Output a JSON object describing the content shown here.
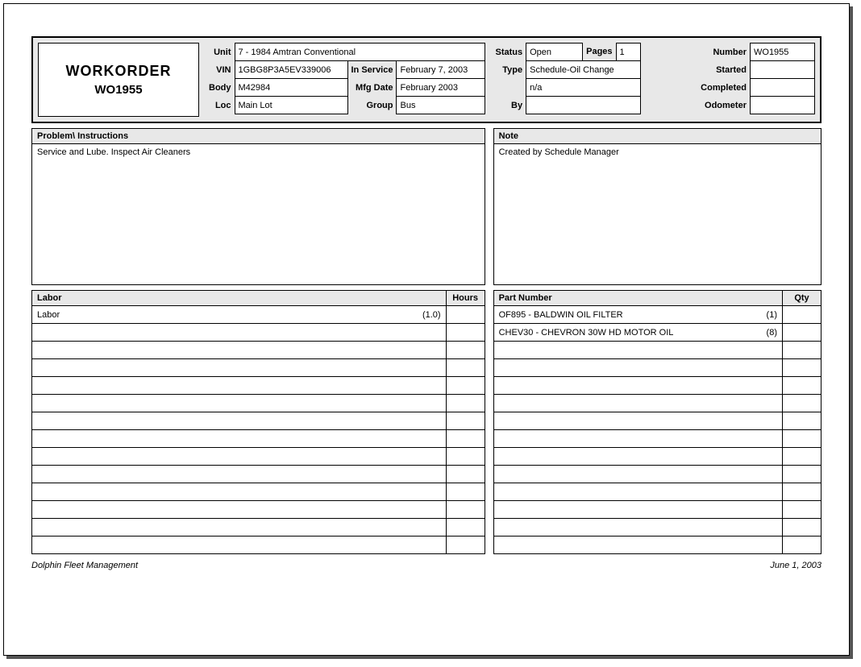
{
  "title": {
    "heading": "WORKORDER",
    "wo_number": "WO1955"
  },
  "header": {
    "unit_label": "Unit",
    "unit": "7 -  1984 Amtran Conventional",
    "vin_label": "VIN",
    "vin": "1GBG8P3A5EV339006",
    "body_label": "Body",
    "body": "M42984",
    "loc_label": "Loc",
    "loc": "Main Lot",
    "inservice_label": "In Service",
    "inservice": "February 7, 2003",
    "mfgdate_label": "Mfg Date",
    "mfgdate": "February 2003",
    "group_label": "Group",
    "group": "Bus",
    "status_label": "Status",
    "status": "Open",
    "pages_label": "Pages",
    "pages": "1",
    "type_label": "Type",
    "type": "Schedule-Oil Change",
    "type2": "n/a",
    "by_label": "By",
    "by": "",
    "number_label": "Number",
    "number": "WO1955",
    "started_label": "Started",
    "started": "",
    "completed_label": "Completed",
    "completed": "",
    "odometer_label": "Odometer",
    "odometer": ""
  },
  "sections": {
    "problem_label": "Problem\\ Instructions",
    "problem_text": "Service and Lube. Inspect Air Cleaners",
    "note_label": "Note",
    "note_text": "Created by Schedule Manager",
    "labor_label": "Labor",
    "hours_label": "Hours",
    "part_label": "Part Number",
    "qty_label": "Qty"
  },
  "labor_rows": [
    {
      "desc": "Labor",
      "count": "(1.0)",
      "hours": ""
    }
  ],
  "part_rows": [
    {
      "desc": "OF895 - BALDWIN OIL FILTER",
      "count": "(1)",
      "qty": ""
    },
    {
      "desc": "CHEV30 - CHEVRON 30W HD MOTOR OIL",
      "count": "(8)",
      "qty": ""
    }
  ],
  "table_total_rows": 14,
  "footer": {
    "left": "Dolphin Fleet Management",
    "right": "June 1, 2003"
  },
  "colors": {
    "header_bg": "#e8e8e8",
    "border": "#000000",
    "page_bg": "#ffffff"
  }
}
